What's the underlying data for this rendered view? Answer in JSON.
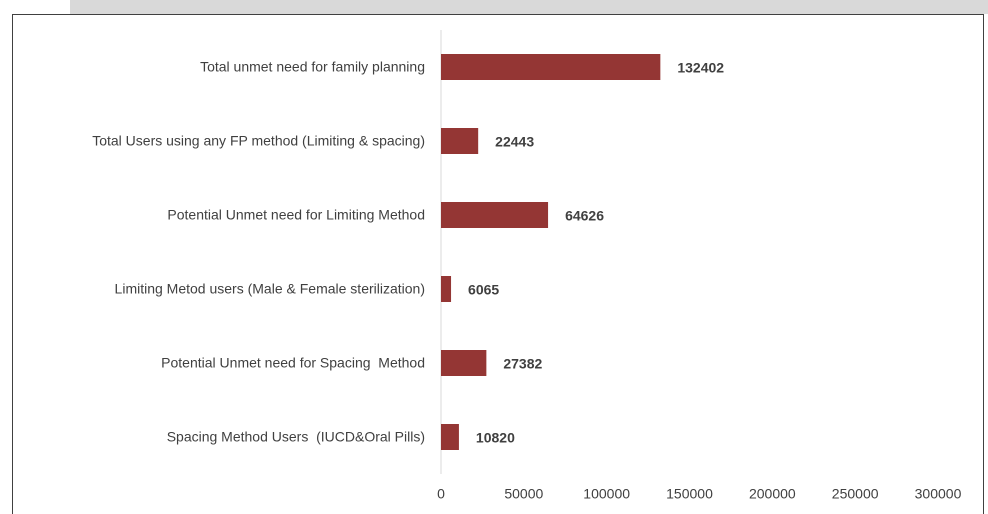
{
  "chart_data": {
    "type": "barh",
    "categories": [
      "Total unmet need for family planning",
      "Total Users using any FP method (Limiting & spacing)",
      "Potential Unmet need for Limiting Method",
      "Limiting Metod users (Male & Female sterilization)",
      "Potential Unmet need for Spacing  Method",
      "Spacing Method Users  (IUCD&Oral Pills)"
    ],
    "values": [
      132402,
      22443,
      64626,
      6065,
      27382,
      10820
    ],
    "color": "#943634",
    "xlim": [
      0,
      300000
    ],
    "xticks": [
      0,
      50000,
      100000,
      150000,
      200000,
      250000,
      300000
    ],
    "grid": false
  }
}
